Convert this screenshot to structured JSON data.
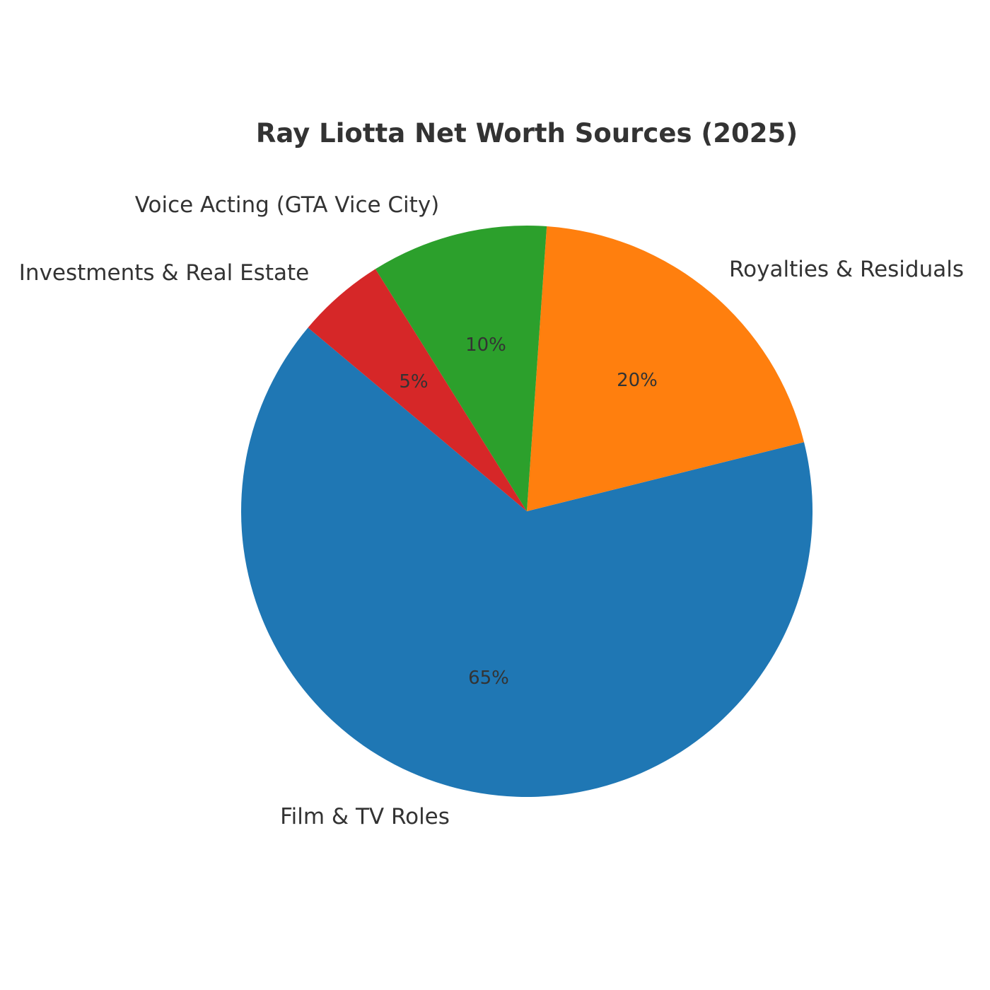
{
  "chart_data": {
    "type": "pie",
    "title": "Ray Liotta Net Worth Sources (2025)",
    "categories": [
      "Film & TV Roles",
      "Royalties & Residuals",
      "Voice Acting (GTA Vice City)",
      "Investments & Real Estate"
    ],
    "values": [
      65,
      20,
      10,
      5
    ],
    "value_labels": [
      "65%",
      "20%",
      "10%",
      "5%"
    ],
    "colors": [
      "#1f77b4",
      "#ff7f0e",
      "#2ca02c",
      "#d62728"
    ],
    "start_angle_deg": 140,
    "direction": "counterclockwise",
    "legend": "none"
  }
}
